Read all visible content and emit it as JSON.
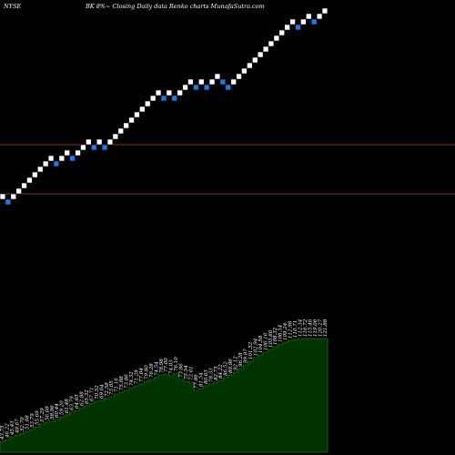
{
  "header": {
    "exchange": "NYSE",
    "title": "BK 8%~ Closing Daily data Renko charts MunafaSutra.com"
  },
  "colors": {
    "background": "#000000",
    "up_brick": "#ffffff",
    "down_brick": "#1e78e6",
    "brick_edge": "#000000",
    "level_line": "#a0522d",
    "volume_fill": "#003300",
    "volume_edge": "#1c6b1c",
    "label": "#ffffff"
  },
  "chart_data": {
    "type": "renko",
    "brick_size": 1,
    "start_level": 1,
    "bricks": [
      "up",
      "down",
      "up",
      "up",
      "up",
      "up",
      "up",
      "up",
      "up",
      "up",
      "down",
      "up",
      "up",
      "down",
      "up",
      "up",
      "up",
      "down",
      "up",
      "down",
      "up",
      "up",
      "up",
      "up",
      "up",
      "up",
      "up",
      "up",
      "up",
      "up",
      "down",
      "up",
      "down",
      "up",
      "up",
      "up",
      "down",
      "up",
      "down",
      "up",
      "up",
      "down",
      "down",
      "up",
      "up",
      "up",
      "up",
      "up",
      "up",
      "up",
      "up",
      "up",
      "up",
      "up",
      "up",
      "down",
      "up",
      "up",
      "down",
      "up",
      "up"
    ],
    "reference_levels": [
      1.5,
      10.5
    ],
    "volume_labels": [
      "43.75",
      "46.22",
      "45.43",
      "48.67",
      "52.70",
      "51.08",
      "53.79",
      "55.69",
      "57.29",
      "56.68",
      "58.96",
      "60.44",
      "59.20",
      "61.48",
      "63.79",
      "64.65",
      "62.88",
      "65.32",
      "67.71",
      "70.52",
      "69.64",
      "72.58",
      "73.05",
      "71.16",
      "75.88",
      "73.86",
      "74.32",
      "71.28",
      "77.04",
      "79.80",
      "76.28",
      "74.54",
      "78.98",
      "77.00",
      "74.03",
      "76.10",
      "73.86",
      "75.54",
      "72.01",
      "77.86",
      "81.54",
      "80.63",
      "78.33",
      "82.75",
      "84.22",
      "86.52",
      "89.96",
      "92.12",
      "96.28",
      "99.87",
      "101.52",
      "102.94",
      "104.58",
      "106.16",
      "103.60",
      "108.32",
      "106.54",
      "109.24",
      "112.98",
      "110.71",
      "112.34",
      "116.72",
      "115.46",
      "119.06",
      "120.27",
      "121.88"
    ],
    "volume_values": [
      12,
      14,
      17,
      19,
      21,
      23,
      25,
      28,
      31,
      33,
      34,
      36,
      39,
      41,
      44,
      46,
      49,
      51,
      54,
      56,
      57,
      59,
      61,
      64,
      66,
      68,
      71,
      73,
      75,
      78,
      80,
      82,
      85,
      86,
      84,
      87,
      80,
      78,
      77,
      68,
      70,
      73,
      75,
      77,
      79,
      82,
      85,
      88,
      92,
      96,
      100,
      104,
      107,
      110,
      113,
      116,
      119,
      121,
      123,
      124,
      125,
      125,
      125,
      125,
      125,
      125
    ]
  }
}
